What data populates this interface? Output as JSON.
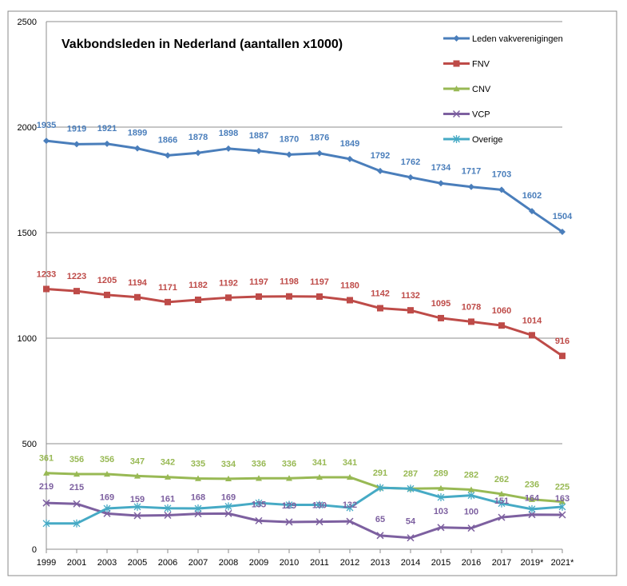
{
  "chart_data": {
    "type": "line",
    "title": "Vakbondsleden in Nederland (aantallen x1000)",
    "xlabel": "",
    "ylabel": "",
    "ylim": [
      0,
      2500
    ],
    "yticks": [
      0,
      500,
      1000,
      1500,
      2000,
      2500
    ],
    "grid": true,
    "legend_position": "top-right",
    "categories": [
      "1999",
      "2001",
      "2003",
      "2005",
      "2006",
      "2007",
      "2008",
      "2009",
      "2010",
      "2011",
      "2012",
      "2013",
      "2014",
      "2015",
      "2016",
      "2017",
      "2019*",
      "2021*"
    ],
    "series": [
      {
        "name": "Leden vakverenigingen",
        "color": "#4a7ebb",
        "marker": "diamond",
        "values": [
          1935,
          1919,
          1921,
          1899,
          1866,
          1878,
          1898,
          1887,
          1870,
          1876,
          1849,
          1792,
          1762,
          1734,
          1717,
          1703,
          1602,
          1504
        ],
        "labels": [
          "1935",
          "1919",
          "1921",
          "1899",
          "1866",
          "1878",
          "1898",
          "1887",
          "1870",
          "1876",
          "1849",
          "1792",
          "1762",
          "1734",
          "1717",
          "1703",
          "1602",
          "1504"
        ]
      },
      {
        "name": "FNV",
        "color": "#be4b48",
        "marker": "square",
        "values": [
          1233,
          1223,
          1205,
          1194,
          1171,
          1182,
          1192,
          1197,
          1198,
          1197,
          1180,
          1142,
          1132,
          1095,
          1078,
          1060,
          1014,
          916
        ],
        "labels": [
          "1233",
          "1223",
          "1205",
          "1194",
          "1171",
          "1182",
          "1192",
          "1197",
          "1198",
          "1197",
          "1180",
          "1142",
          "1132",
          "1095",
          "1078",
          "1060",
          "1014",
          "916"
        ]
      },
      {
        "name": "CNV",
        "color": "#98b954",
        "marker": "triangle",
        "values": [
          361,
          356,
          356,
          347,
          342,
          335,
          334,
          336,
          336,
          341,
          341,
          291,
          287,
          289,
          282,
          262,
          236,
          225
        ],
        "labels": [
          "361",
          "356",
          "356",
          "347",
          "342",
          "335",
          "334",
          "336",
          "336",
          "341",
          "341",
          "291",
          "287",
          "289",
          "282",
          "262",
          "236",
          "225"
        ]
      },
      {
        "name": "VCP",
        "color": "#7d60a0",
        "marker": "x",
        "values": [
          219,
          215,
          169,
          159,
          161,
          168,
          169,
          135,
          129,
          130,
          132,
          65,
          54,
          103,
          100,
          151,
          164,
          163
        ],
        "labels": [
          "219",
          "215",
          "169",
          "159",
          "161",
          "168",
          "169",
          "135",
          "129",
          "130",
          "132",
          "65",
          "54",
          "103",
          "100",
          "151",
          "164",
          "163"
        ]
      },
      {
        "name": "Overige",
        "color": "#46aac5",
        "marker": "star",
        "values": [
          122,
          122,
          193,
          201,
          194,
          193,
          203,
          219,
          210,
          210,
          197,
          291,
          287,
          246,
          255,
          217,
          190,
          201
        ],
        "labels": []
      }
    ]
  }
}
